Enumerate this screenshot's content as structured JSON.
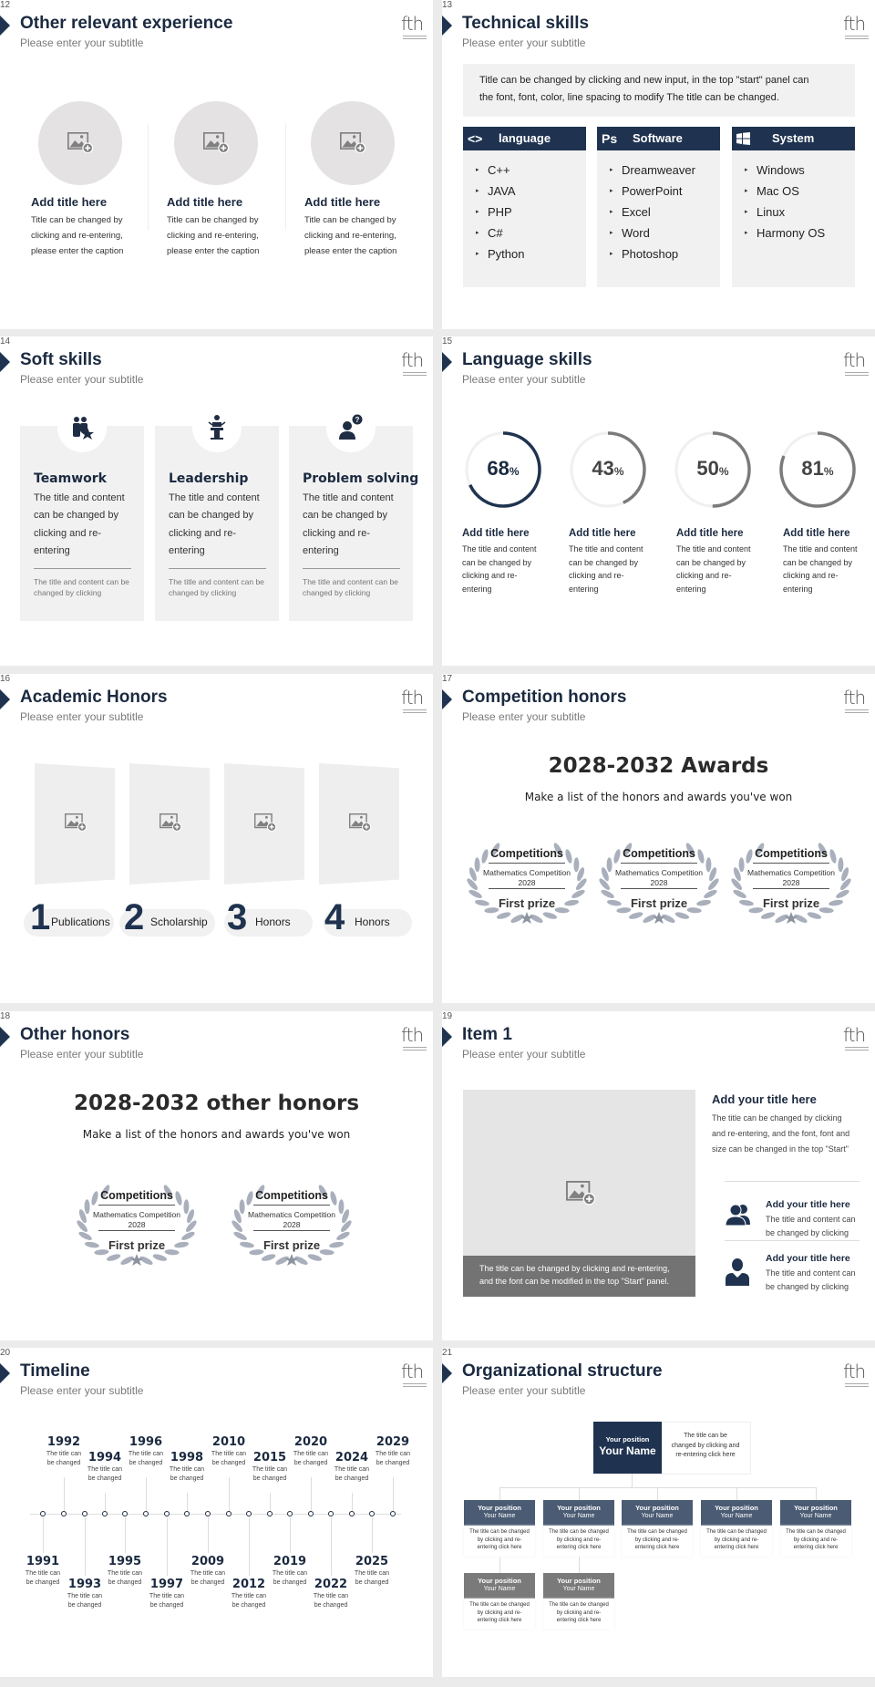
{
  "colors": {
    "accent": "#1f3350",
    "ring_gray": "#7a7a7a",
    "panel": "#f1f1f1",
    "caption_band": "#737373",
    "laurel": "#a9b0bc"
  },
  "logo_text": "fth",
  "slides": [
    {
      "title": "Other relevant experience",
      "subtitle": "Please enter your subtitle",
      "page": "12",
      "items": [
        {
          "title": "Add title here",
          "lines": [
            "Title can be changed by",
            "clicking and re-entering,",
            "please enter the caption"
          ]
        },
        {
          "title": "Add title here",
          "lines": [
            "Title can be changed by",
            "clicking and re-entering,",
            "please enter the caption"
          ]
        },
        {
          "title": "Add title here",
          "lines": [
            "Title can be changed by",
            "clicking and re-entering,",
            "please enter the caption"
          ]
        }
      ]
    },
    {
      "title": "Technical skills",
      "subtitle": "Please enter your subtitle",
      "page": "13",
      "intro": [
        "Title can be changed by clicking and new input, in the top \"start\" panel can",
        "the font, font, color, line spacing to modify The title can be changed."
      ],
      "columns": [
        {
          "icon": "code-brackets-icon",
          "icon_text": "<>",
          "label": "language",
          "items": [
            "C++",
            "JAVA",
            "PHP",
            "C#",
            "Python"
          ]
        },
        {
          "icon": "photoshop-icon",
          "icon_text": "Ps",
          "label": "Software",
          "items": [
            "Dreamweaver",
            "PowerPoint",
            "Excel",
            "Word",
            "Photoshop"
          ]
        },
        {
          "icon": "windows-icon",
          "icon_text": "",
          "label": "System",
          "items": [
            "Windows",
            "Mac OS",
            "Linux",
            "Harmony OS"
          ]
        }
      ]
    },
    {
      "title": "Soft skills",
      "subtitle": "Please enter your subtitle",
      "page": "14",
      "cards": [
        {
          "icon": "teamwork-icon",
          "title": "Teamwork",
          "lines": [
            "The title and content",
            "can be changed by",
            "clicking and re-",
            "entering"
          ],
          "note": [
            "The title and content can be",
            "changed by clicking"
          ]
        },
        {
          "icon": "leadership-icon",
          "title": "Leadership",
          "lines": [
            "The title and content",
            "can be changed by",
            "clicking and re-",
            "entering"
          ],
          "note": [
            "The title and content can be",
            "changed by clicking"
          ]
        },
        {
          "icon": "problem-solving-icon",
          "title": "Problem solving",
          "lines": [
            "The title and content",
            "can be changed by",
            "clicking and re-",
            "entering"
          ],
          "note": [
            "The title and content can be",
            "changed by clicking"
          ]
        }
      ]
    },
    {
      "title": "Language skills",
      "subtitle": "Please enter your subtitle",
      "page": "15",
      "rings": [
        {
          "percent": 68,
          "unit": "%",
          "color": "#1f3350",
          "title": "Add title here",
          "lines": [
            "The title and content",
            "can be changed by",
            "clicking and re-",
            "entering"
          ]
        },
        {
          "percent": 43,
          "unit": "%",
          "color": "#7a7a7a",
          "title": "Add title here",
          "lines": [
            "The title and content",
            "can be changed by",
            "clicking and re-",
            "entering"
          ]
        },
        {
          "percent": 50,
          "unit": "%",
          "color": "#7a7a7a",
          "title": "Add title here",
          "lines": [
            "The title and content",
            "can be changed by",
            "clicking and re-",
            "entering"
          ]
        },
        {
          "percent": 81,
          "unit": "%",
          "color": "#7a7a7a",
          "title": "Add title here",
          "lines": [
            "The title and content",
            "can be changed by",
            "clicking and re-",
            "entering"
          ]
        }
      ]
    },
    {
      "title": "Academic Honors",
      "subtitle": "Please enter your subtitle",
      "page": "16",
      "items": [
        {
          "num": "1",
          "label": "Publications"
        },
        {
          "num": "2",
          "label": "Scholarship"
        },
        {
          "num": "3",
          "label": "Honors"
        },
        {
          "num": "4",
          "label": "Honors"
        }
      ]
    },
    {
      "title": "Competition honors",
      "subtitle": "Please enter your subtitle",
      "page": "17",
      "heading": "2028-2032 Awards",
      "tagline": "Make a list of the honors and awards you've won",
      "awards": [
        {
          "category": "Competitions",
          "name": "Mathematics Competition",
          "year": "2028",
          "prize": "First prize"
        },
        {
          "category": "Competitions",
          "name": "Mathematics Competition",
          "year": "2028",
          "prize": "First prize"
        },
        {
          "category": "Competitions",
          "name": "Mathematics Competition",
          "year": "2028",
          "prize": "First prize"
        }
      ]
    },
    {
      "title": "Other honors",
      "subtitle": "Please enter your subtitle",
      "page": "18",
      "heading": "2028-2032 other honors",
      "tagline": "Make a list of the honors and awards you've won",
      "awards": [
        {
          "category": "Competitions",
          "name": "Mathematics Competition",
          "year": "2028",
          "prize": "First prize"
        },
        {
          "category": "Competitions",
          "name": "Mathematics Competition",
          "year": "2028",
          "prize": "First prize"
        }
      ]
    },
    {
      "title": "Item 1",
      "subtitle": "Please enter your subtitle",
      "page": "19",
      "caption": [
        "The title can be changed by clicking and re-entering,",
        "and the font can be modified in the top \"Start\" panel."
      ],
      "main_title": "Add your title here",
      "main_lines": [
        "The title can be changed by clicking",
        "and re-entering, and the font, font and",
        "size can be changed in the top \"Start\""
      ],
      "entries": [
        {
          "icon": "group-icon",
          "title": "Add your title here",
          "lines": [
            "The title and content can",
            "be changed by clicking"
          ]
        },
        {
          "icon": "person-icon",
          "title": "Add your title here",
          "lines": [
            "The title and content can",
            "be changed by clicking"
          ]
        }
      ]
    },
    {
      "title": "Timeline",
      "subtitle": "Please enter your subtitle",
      "page": "20",
      "events": [
        {
          "year": "1991",
          "lines": [
            "The title can",
            "be changed"
          ]
        },
        {
          "year": "1992",
          "lines": [
            "The title can",
            "be changed"
          ]
        },
        {
          "year": "1993",
          "lines": [
            "The title can",
            "be changed"
          ]
        },
        {
          "year": "1994",
          "lines": [
            "The title can",
            "be changed"
          ]
        },
        {
          "year": "1995",
          "lines": [
            "The title can",
            "be changed"
          ]
        },
        {
          "year": "1996",
          "lines": [
            "The title can",
            "be changed"
          ]
        },
        {
          "year": "1997",
          "lines": [
            "The title can",
            "be changed"
          ]
        },
        {
          "year": "1998",
          "lines": [
            "The title can",
            "be changed"
          ]
        },
        {
          "year": "2009",
          "lines": [
            "The title can",
            "be changed"
          ]
        },
        {
          "year": "2010",
          "lines": [
            "The title can",
            "be changed"
          ]
        },
        {
          "year": "2012",
          "lines": [
            "The title can",
            "be changed"
          ]
        },
        {
          "year": "2015",
          "lines": [
            "The title can",
            "be changed"
          ]
        },
        {
          "year": "2019",
          "lines": [
            "The title can",
            "be changed"
          ]
        },
        {
          "year": "2020",
          "lines": [
            "The title can",
            "be changed"
          ]
        },
        {
          "year": "2022",
          "lines": [
            "The title can",
            "be changed"
          ]
        },
        {
          "year": "2024",
          "lines": [
            "The title can",
            "be changed"
          ]
        },
        {
          "year": "2025",
          "lines": [
            "The title can",
            "be changed"
          ]
        },
        {
          "year": "2029",
          "lines": [
            "The title can",
            "be changed"
          ]
        }
      ]
    },
    {
      "title": "Organizational structure",
      "subtitle": "Please enter your subtitle",
      "page": "21",
      "top": {
        "position": "Your position",
        "name": "Your Name",
        "desc": [
          "The title can be",
          "changed by clicking and",
          "re-entering click here"
        ]
      },
      "row2": [
        {
          "position": "Your position",
          "name": "Your Name",
          "desc": [
            "The title can be changed",
            "by clicking and re-",
            "entering click here"
          ]
        },
        {
          "position": "Your position",
          "name": "Your Name",
          "desc": [
            "The title can be changed",
            "by clicking and re-",
            "entering click here"
          ]
        },
        {
          "position": "Your position",
          "name": "Your Name",
          "desc": [
            "The title can be changed",
            "by clicking and re-",
            "entering click here"
          ]
        },
        {
          "position": "Your position",
          "name": "Your Name",
          "desc": [
            "The title can be changed",
            "by clicking and re-",
            "entering click here"
          ]
        },
        {
          "position": "Your position",
          "name": "Your Name",
          "desc": [
            "The title can be changed",
            "by clicking and re-",
            "entering click here"
          ]
        }
      ],
      "row3": [
        {
          "position": "Your position",
          "name": "Your Name",
          "desc": [
            "The title can be changed",
            "by clicking and re-",
            "entering click here"
          ]
        },
        {
          "position": "Your position",
          "name": "Your Name",
          "desc": [
            "The title can be changed",
            "by clicking and re-",
            "entering click here"
          ]
        }
      ]
    }
  ]
}
